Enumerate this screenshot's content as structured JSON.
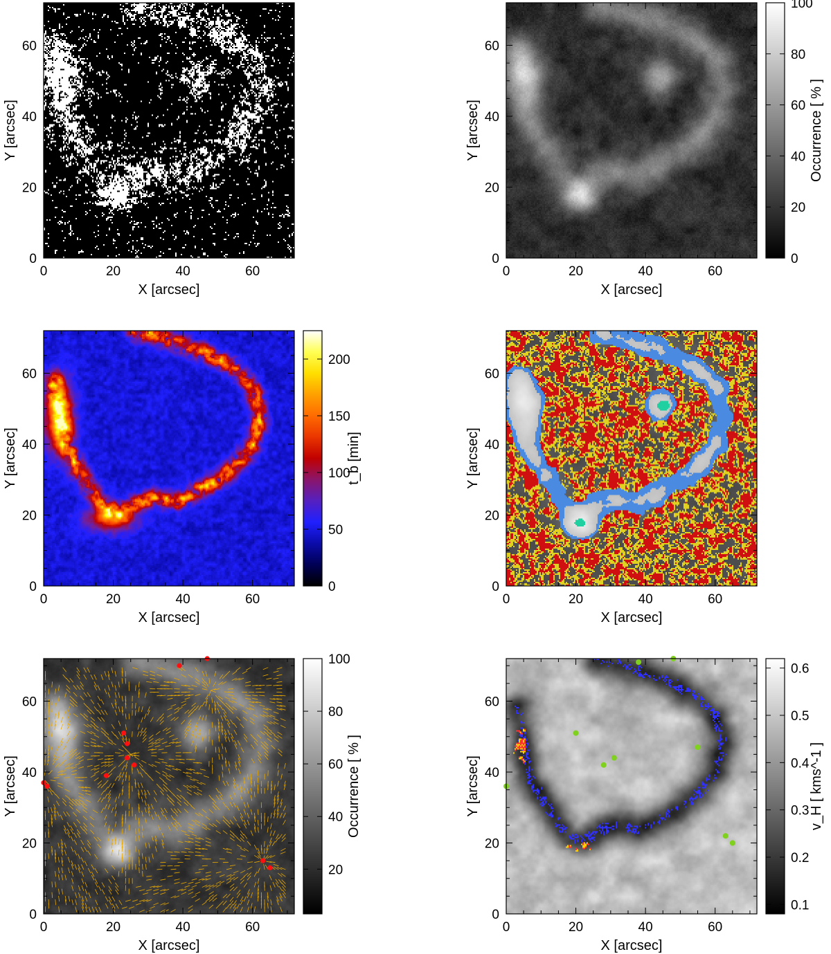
{
  "chart_data": [
    {
      "type": "heatmap",
      "panel": "top-left",
      "xlabel": "X [arcsec]",
      "ylabel": "Y [arcsec]",
      "xlim": [
        0,
        72
      ],
      "ylim": [
        0,
        72
      ],
      "xticks": [
        0,
        20,
        40,
        60
      ],
      "yticks": [
        0,
        20,
        40,
        60
      ],
      "colormap": "binary",
      "colorbar": null,
      "colors": {
        "low": "#000000",
        "high": "#ffffff"
      }
    },
    {
      "type": "heatmap",
      "panel": "top-right",
      "xlabel": "X [arcsec]",
      "ylabel": "Y [arcsec]",
      "xlim": [
        0,
        72
      ],
      "ylim": [
        0,
        72
      ],
      "xticks": [
        0,
        20,
        40,
        60
      ],
      "yticks": [
        0,
        20,
        40,
        60
      ],
      "colormap": "gray",
      "colorbar": {
        "label": "Occurrence [ % ]",
        "ticks": [
          0,
          20,
          40,
          60,
          80,
          100
        ],
        "range": [
          0,
          100
        ]
      },
      "colors": {
        "low": "#000000",
        "high": "#ffffff"
      }
    },
    {
      "type": "heatmap",
      "panel": "middle-left",
      "xlabel": "X [arcsec]",
      "ylabel": "Y [arcsec]",
      "xlim": [
        0,
        72
      ],
      "ylim": [
        0,
        72
      ],
      "xticks": [
        0,
        20,
        40,
        60
      ],
      "yticks": [
        0,
        20,
        40,
        60
      ],
      "colormap": "fire",
      "colorbar": {
        "label": "t_b [min]",
        "ticks": [
          0,
          50,
          100,
          150,
          200
        ],
        "range": [
          0,
          225
        ]
      },
      "colors": {
        "stops": [
          "#000000",
          "#000080",
          "#2020ff",
          "#7020a0",
          "#c00000",
          "#ff5000",
          "#ffa000",
          "#ffff00",
          "#ffffff"
        ]
      }
    },
    {
      "type": "heatmap",
      "panel": "middle-right",
      "xlabel": "X [arcsec]",
      "ylabel": "Y [arcsec]",
      "xlim": [
        0,
        72
      ],
      "ylim": [
        0,
        72
      ],
      "xticks": [
        0,
        20,
        40,
        60
      ],
      "yticks": [
        0,
        20,
        40,
        60
      ],
      "colormap": "categorical overlay",
      "colorbar": null,
      "colors": {
        "red": "#d01010",
        "yellow": "#e0d020",
        "blue": "#4a8ae0",
        "green": "#20d0a0",
        "background": "#3a3a3a"
      }
    },
    {
      "type": "heatmap",
      "panel": "bottom-left",
      "xlabel": "X [arcsec]",
      "ylabel": "Y [arcsec]",
      "xlim": [
        0,
        72
      ],
      "ylim": [
        0,
        72
      ],
      "xticks": [
        0,
        20,
        40,
        60
      ],
      "yticks": [
        0,
        20,
        40,
        60
      ],
      "colormap": "gray",
      "colorbar": {
        "label": "Occurrence [ % ]",
        "ticks": [
          20,
          40,
          60,
          80,
          100
        ],
        "range": [
          3,
          100
        ]
      },
      "colors": {
        "arrows": "#e8a800",
        "patches": "#ff1010"
      }
    },
    {
      "type": "heatmap",
      "panel": "bottom-right",
      "xlabel": "X [arcsec]",
      "ylabel": "Y [arcsec]",
      "xlim": [
        0,
        72
      ],
      "ylim": [
        0,
        72
      ],
      "xticks": [
        0,
        20,
        40,
        60
      ],
      "yticks": [
        0,
        20,
        40,
        60
      ],
      "colormap": "gray",
      "colorbar": {
        "label": "v_H [ kms^-1 ]",
        "ticks": [
          0.1,
          0.2,
          0.3,
          0.4,
          0.5,
          0.6
        ],
        "range": [
          0.08,
          0.62
        ]
      },
      "colors": {
        "contour_blue": "#3030ff",
        "contour_red": "#ff3030",
        "contour_yellow": "#ffd000",
        "patches": "#80d020"
      }
    }
  ]
}
